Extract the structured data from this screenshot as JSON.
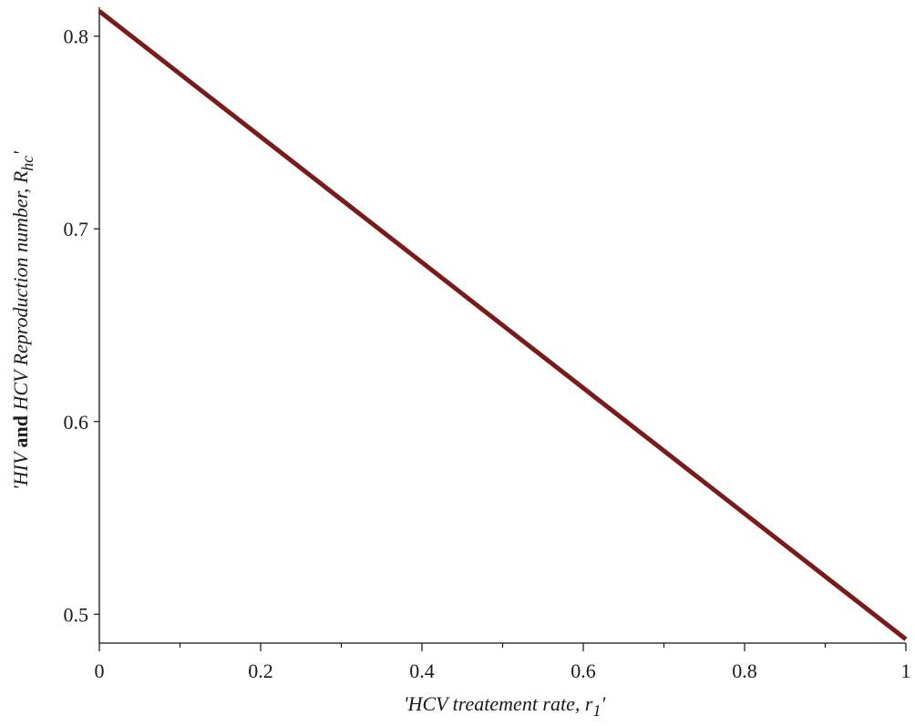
{
  "chart_data": {
    "type": "line",
    "title": "",
    "xlabel": {
      "prefix": "'",
      "text": "HCV treatement rate, r",
      "subscript": "1",
      "suffix": "'"
    },
    "ylabel": {
      "prefix": "'",
      "part1": "HIV ",
      "part2": "and",
      "part3": " HCV Reproduction number, R",
      "subscript": "hc",
      "suffix": "'"
    },
    "xlim": [
      0,
      1
    ],
    "ylim": [
      0.485,
      0.815
    ],
    "xticks": [
      0,
      0.2,
      0.4,
      0.6,
      0.8,
      1
    ],
    "xtick_labels": [
      "0",
      "0.2",
      "0.4",
      "0.6",
      "0.8",
      "1"
    ],
    "xminor_ticks": [
      0.1,
      0.3,
      0.5,
      0.7,
      0.9
    ],
    "yticks": [
      0.5,
      0.6,
      0.7,
      0.8
    ],
    "ytick_labels": [
      "0.5",
      "0.6",
      "0.7",
      "0.8"
    ],
    "grid": false,
    "series": [
      {
        "color": "#7b1a1a",
        "x": [
          0,
          1
        ],
        "y": [
          0.813,
          0.487
        ]
      }
    ]
  }
}
